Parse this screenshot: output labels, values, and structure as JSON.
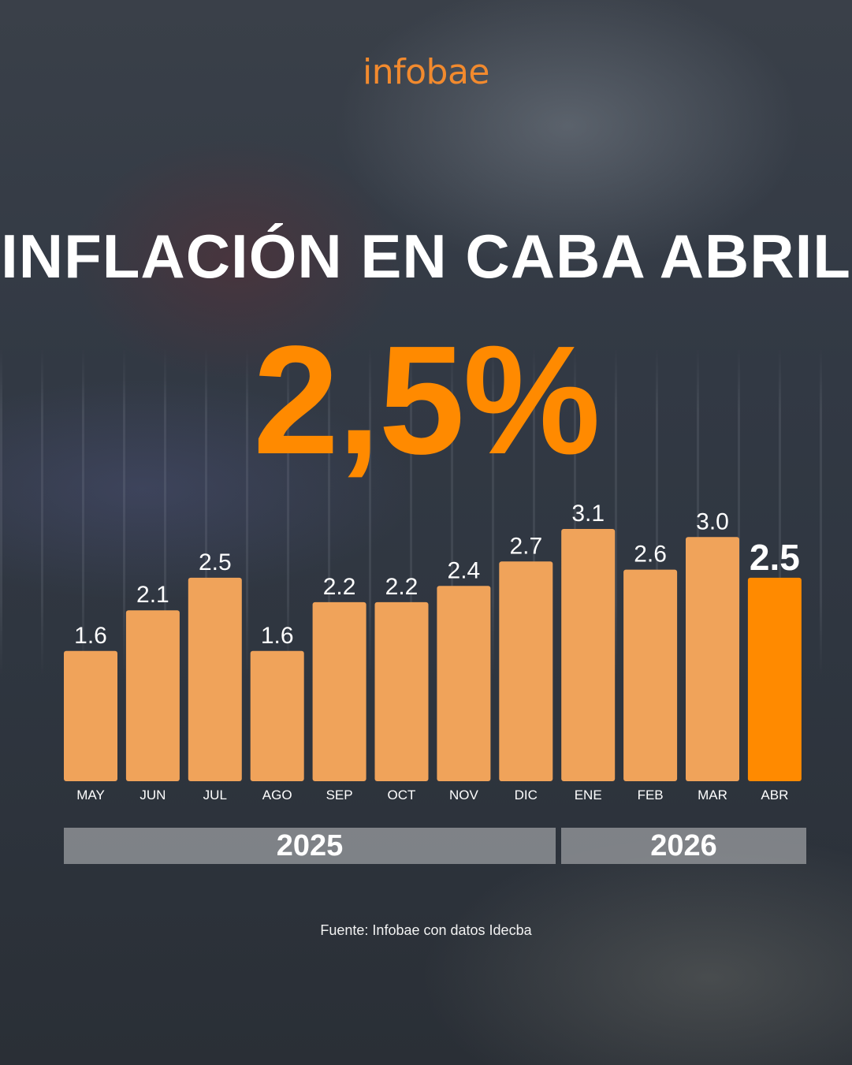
{
  "brand": "infobae",
  "title": "INFLACIÓN EN CABA ABRIL",
  "headline_value": "2,5%",
  "years": [
    "2025",
    "2026"
  ],
  "source": "Fuente: Infobae con datos Idecba",
  "colors": {
    "bar": "#f0a35a",
    "highlight": "#ff8a00",
    "brand": "#f28a2e"
  },
  "chart_data": {
    "type": "bar",
    "categories": [
      "MAY",
      "JUN",
      "JUL",
      "AGO",
      "SEP",
      "OCT",
      "NOV",
      "DIC",
      "ENE",
      "FEB",
      "MAR",
      "ABR"
    ],
    "values": [
      1.6,
      2.1,
      2.5,
      1.6,
      2.2,
      2.2,
      2.4,
      2.7,
      3.1,
      2.6,
      3.0,
      2.5
    ],
    "labels": [
      "1.6",
      "2.1",
      "2.5",
      "1.6",
      "2.2",
      "2.2",
      "2.4",
      "2.7",
      "3.1",
      "2.6",
      "3.0",
      "2.5"
    ],
    "highlight_index": 11,
    "ylim": [
      0,
      3.1
    ],
    "grid": false,
    "xlabel": "",
    "ylabel": ""
  }
}
